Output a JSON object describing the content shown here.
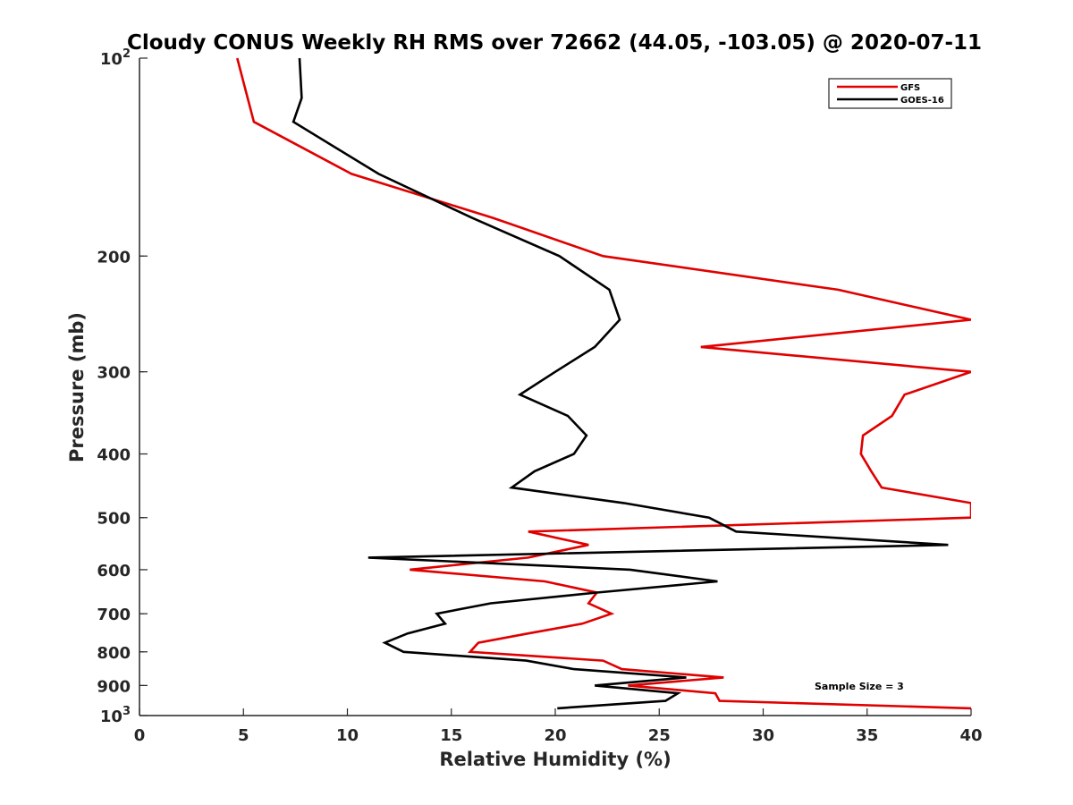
{
  "chart_data": {
    "type": "line",
    "title": "Cloudy CONUS Weekly RH RMS over 72662 (44.05, -103.05) @ 2020-07-11",
    "xlabel": "Relative Humidity (%)",
    "ylabel": "Pressure (mb)",
    "xlim": [
      0,
      40
    ],
    "ylim": [
      100,
      1000
    ],
    "y_scale": "log",
    "y_reversed": true,
    "grid": false,
    "legend_position": "top-right",
    "x_ticks": [
      "0",
      "5",
      "10",
      "15",
      "20",
      "25",
      "30",
      "35",
      "40"
    ],
    "y_ticks": [
      {
        "value": 100,
        "base": "10",
        "exp": "2"
      },
      {
        "value": 200,
        "label": "200"
      },
      {
        "value": 300,
        "label": "300"
      },
      {
        "value": 400,
        "label": "400"
      },
      {
        "value": 500,
        "label": "500"
      },
      {
        "value": 600,
        "label": "600"
      },
      {
        "value": 700,
        "label": "700"
      },
      {
        "value": 800,
        "label": "800"
      },
      {
        "value": 900,
        "label": "900"
      },
      {
        "value": 1000,
        "base": "10",
        "exp": "3"
      }
    ],
    "annotation": "Sample Size = 3",
    "series": [
      {
        "name": "GFS",
        "color": "#e00000",
        "points": [
          [
            4.7,
            100
          ],
          [
            5.5,
            125
          ],
          [
            10.2,
            150
          ],
          [
            17,
            175
          ],
          [
            22.3,
            200
          ],
          [
            33.6,
            225
          ],
          [
            40,
            250
          ],
          [
            27,
            275
          ],
          [
            40,
            300
          ],
          [
            36.8,
            325
          ],
          [
            36.2,
            350
          ],
          [
            34.8,
            375
          ],
          [
            34.7,
            400
          ],
          [
            35.2,
            425
          ],
          [
            35.7,
            450
          ],
          [
            40,
            475
          ],
          [
            40,
            500
          ],
          [
            18.7,
            525
          ],
          [
            21.6,
            550
          ],
          [
            18.7,
            575
          ],
          [
            13,
            600
          ],
          [
            19.5,
            625
          ],
          [
            22,
            650
          ],
          [
            21.6,
            675
          ],
          [
            22.7,
            700
          ],
          [
            21.3,
            725
          ],
          [
            18.7,
            750
          ],
          [
            16.3,
            775
          ],
          [
            15.9,
            800
          ],
          [
            22.3,
            825
          ],
          [
            23.2,
            850
          ],
          [
            28.1,
            875
          ],
          [
            23.5,
            900
          ],
          [
            27.7,
            925
          ],
          [
            27.9,
            950
          ],
          [
            40,
            975
          ]
        ]
      },
      {
        "name": "GOES-16",
        "color": "#000000",
        "points": [
          [
            7.7,
            100
          ],
          [
            7.8,
            115
          ],
          [
            7.4,
            125
          ],
          [
            11.5,
            150
          ],
          [
            16,
            175
          ],
          [
            20.2,
            200
          ],
          [
            22.6,
            225
          ],
          [
            23.1,
            250
          ],
          [
            21.9,
            275
          ],
          [
            20,
            300
          ],
          [
            18.3,
            325
          ],
          [
            20.6,
            350
          ],
          [
            21.5,
            375
          ],
          [
            20.9,
            400
          ],
          [
            19,
            425
          ],
          [
            17.9,
            450
          ],
          [
            23.3,
            475
          ],
          [
            27.4,
            500
          ],
          [
            28.7,
            525
          ],
          [
            38.9,
            550
          ],
          [
            11,
            575
          ],
          [
            23.6,
            600
          ],
          [
            27.8,
            625
          ],
          [
            22,
            650
          ],
          [
            16.9,
            675
          ],
          [
            14.3,
            700
          ],
          [
            14.7,
            725
          ],
          [
            12.9,
            750
          ],
          [
            11.8,
            775
          ],
          [
            12.7,
            800
          ],
          [
            18.6,
            825
          ],
          [
            20.9,
            850
          ],
          [
            26.3,
            875
          ],
          [
            21.9,
            900
          ],
          [
            25.9,
            925
          ],
          [
            25.3,
            950
          ],
          [
            20.1,
            975
          ]
        ]
      }
    ]
  }
}
